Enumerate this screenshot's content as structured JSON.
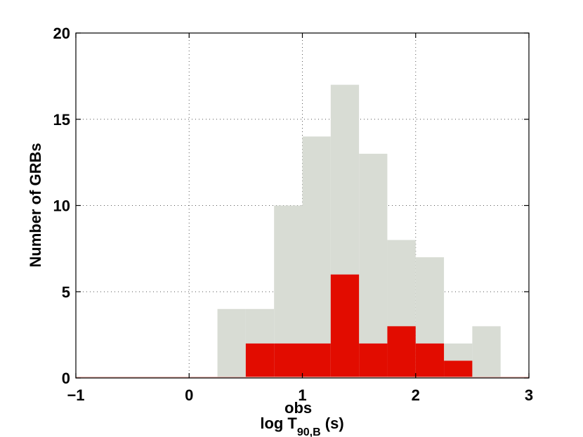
{
  "chart_data": {
    "type": "bar",
    "xlabel": {
      "main": "log T",
      "superscript": "obs",
      "subscript": "90,B",
      "suffix": " (s)"
    },
    "ylabel": "Number of GRBs",
    "xlim": [
      -1,
      3
    ],
    "ylim": [
      0,
      20
    ],
    "xticks": [
      -1,
      0,
      1,
      2,
      3
    ],
    "xtick_labels": [
      "−1",
      "0",
      "1",
      "2",
      "3"
    ],
    "yticks": [
      0,
      5,
      10,
      15,
      20
    ],
    "ytick_labels": [
      "0",
      "5",
      "10",
      "15",
      "20"
    ],
    "grid": true,
    "bin_edges": [
      0.25,
      0.5,
      0.75,
      1.0,
      1.25,
      1.5,
      1.75,
      2.0,
      2.25,
      2.5,
      2.75
    ],
    "series": [
      {
        "color": "#d8dcd4",
        "values": [
          4,
          4,
          10,
          14,
          17,
          13,
          8,
          7,
          2,
          3
        ]
      },
      {
        "color": "#e20c00",
        "values": [
          0,
          2,
          2,
          2,
          6,
          2,
          3,
          2,
          1,
          0
        ]
      }
    ]
  }
}
